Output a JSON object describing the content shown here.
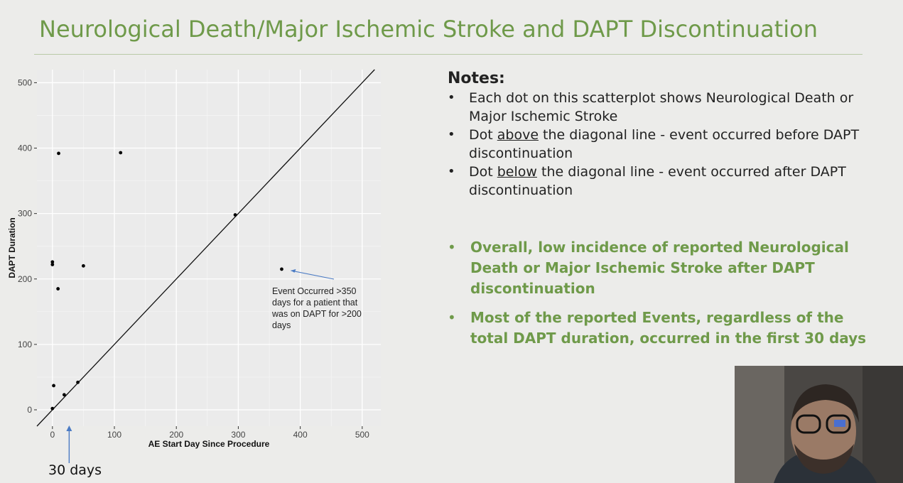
{
  "slide": {
    "title": "Neurological Death/Major Ischemic Stroke and DAPT Discontinuation",
    "accent_color": "#6f9a4a"
  },
  "chart_data": {
    "type": "scatter",
    "title": "",
    "xlabel": "AE Start Day Since Procedure",
    "ylabel": "DAPT Duration",
    "xlim": [
      -25,
      530
    ],
    "ylim": [
      -25,
      520
    ],
    "xticks": [
      0,
      100,
      200,
      300,
      400,
      500
    ],
    "yticks": [
      0,
      100,
      200,
      300,
      400,
      500
    ],
    "xtick_labels": [
      "0",
      "100",
      "200",
      "300",
      "400",
      "500"
    ],
    "ytick_labels": [
      "0",
      "100",
      "200",
      "300",
      "400",
      "500"
    ],
    "grid": true,
    "reference_line": "y = x",
    "points": [
      {
        "x": 10,
        "y": 392
      },
      {
        "x": 110,
        "y": 393
      },
      {
        "x": 0,
        "y": 226
      },
      {
        "x": 0,
        "y": 222
      },
      {
        "x": 50,
        "y": 220
      },
      {
        "x": 9,
        "y": 185
      },
      {
        "x": 295,
        "y": 298
      },
      {
        "x": 370,
        "y": 215
      },
      {
        "x": 2,
        "y": 37
      },
      {
        "x": 41,
        "y": 42
      },
      {
        "x": 19,
        "y": 23
      },
      {
        "x": 0,
        "y": 2
      }
    ],
    "annotation": {
      "text_lines": [
        "Event Occurred >350",
        "days for a patient that",
        "was on DAPT for >200",
        "days"
      ],
      "points_to": {
        "x": 370,
        "y": 215
      }
    },
    "marker_annotation": {
      "label": "30 days",
      "x": 27
    }
  },
  "notes": {
    "heading": "Notes:",
    "items": [
      {
        "before": "Each dot on this scatterplot shows Neurological Death or Major Ischemic Stroke",
        "underlined": "",
        "after": ""
      },
      {
        "before": "Dot ",
        "underlined": "above",
        "after": " the diagonal line - event occurred before DAPT discontinuation"
      },
      {
        "before": "Dot ",
        "underlined": "below",
        "after": " the diagonal line - event occurred after DAPT discontinuation"
      }
    ]
  },
  "highlights": {
    "items": [
      "Overall, low incidence of reported Neurological Death or Major Ischemic Stroke after DAPT discontinuation",
      "Most of the reported Events, regardless of the total DAPT duration, occurred in the first 30 days"
    ]
  },
  "webcam": {
    "label": "presenter-video"
  }
}
